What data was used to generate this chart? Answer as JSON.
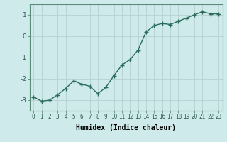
{
  "x": [
    0,
    1,
    2,
    3,
    4,
    5,
    6,
    7,
    8,
    9,
    10,
    11,
    12,
    13,
    14,
    15,
    16,
    17,
    18,
    19,
    20,
    21,
    22,
    23
  ],
  "y": [
    -2.85,
    -3.05,
    -3.0,
    -2.75,
    -2.45,
    -2.1,
    -2.25,
    -2.35,
    -2.7,
    -2.4,
    -1.85,
    -1.35,
    -1.1,
    -0.65,
    0.2,
    0.5,
    0.6,
    0.55,
    0.7,
    0.85,
    1.0,
    1.15,
    1.05,
    1.05
  ],
  "line_color": "#2a6b5e",
  "marker": "+",
  "marker_size": 4,
  "linewidth": 1.0,
  "xlabel": "Humidex (Indice chaleur)",
  "xlim": [
    -0.5,
    23.5
  ],
  "ylim": [
    -3.5,
    1.5
  ],
  "yticks": [
    -3,
    -2,
    -1,
    0,
    1
  ],
  "xtick_labels": [
    "0",
    "1",
    "2",
    "3",
    "4",
    "5",
    "6",
    "7",
    "8",
    "9",
    "10",
    "11",
    "12",
    "13",
    "14",
    "15",
    "16",
    "17",
    "18",
    "19",
    "20",
    "21",
    "22",
    "23"
  ],
  "bg_color": "#ceeaea",
  "grid_color": "#b8d4d4",
  "spine_color": "#5a8a7a"
}
